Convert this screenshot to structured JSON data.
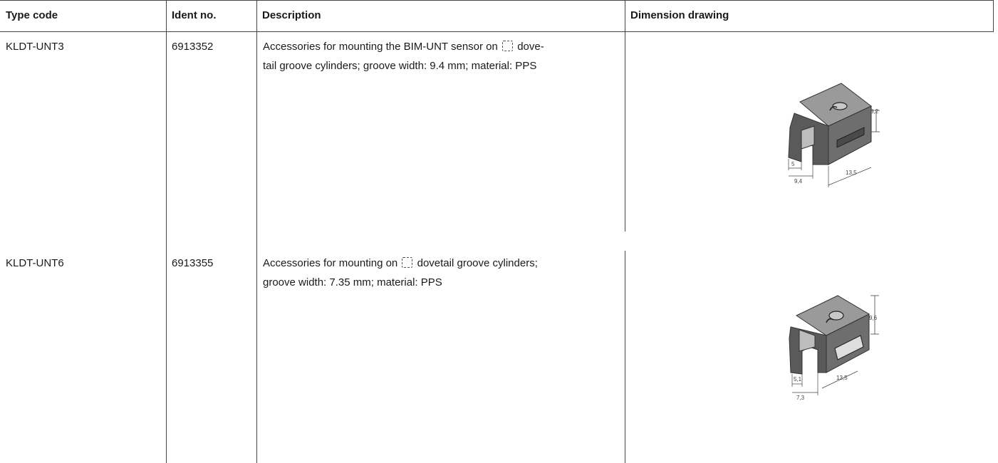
{
  "table": {
    "headers": {
      "type_code": "Type code",
      "ident_no": "Ident no.",
      "description": "Description",
      "dimension_drawing": "Dimension drawing"
    },
    "rows": [
      {
        "type_code": "KLDT-UNT3",
        "ident_no": "6913352",
        "description_line1_before": "Accessories for mounting the BIM-UNT sensor on",
        "description_line1_after": "dove-",
        "description_line2": "tail groove cylinders; groove width: 9.4 mm; material: PPS",
        "symbol_icon": "dovetail-groove-icon",
        "drawing_icon": "mounting-bracket-drawing",
        "dims": {
          "height": "8,2",
          "slot": "5",
          "width": "9,4",
          "length": "13,5"
        }
      },
      {
        "type_code": "KLDT-UNT6",
        "ident_no": "6913355",
        "description_line1_before": "Accessories for mounting on",
        "description_line1_after": "dovetail groove cylinders;",
        "description_line2": "groove width: 7.35 mm; material: PPS",
        "symbol_icon": "dovetail-groove-icon",
        "drawing_icon": "mounting-bracket-drawing",
        "dims": {
          "height": "9,6",
          "slot": "5,1",
          "width": "7,3",
          "length": "13,5"
        }
      }
    ]
  }
}
